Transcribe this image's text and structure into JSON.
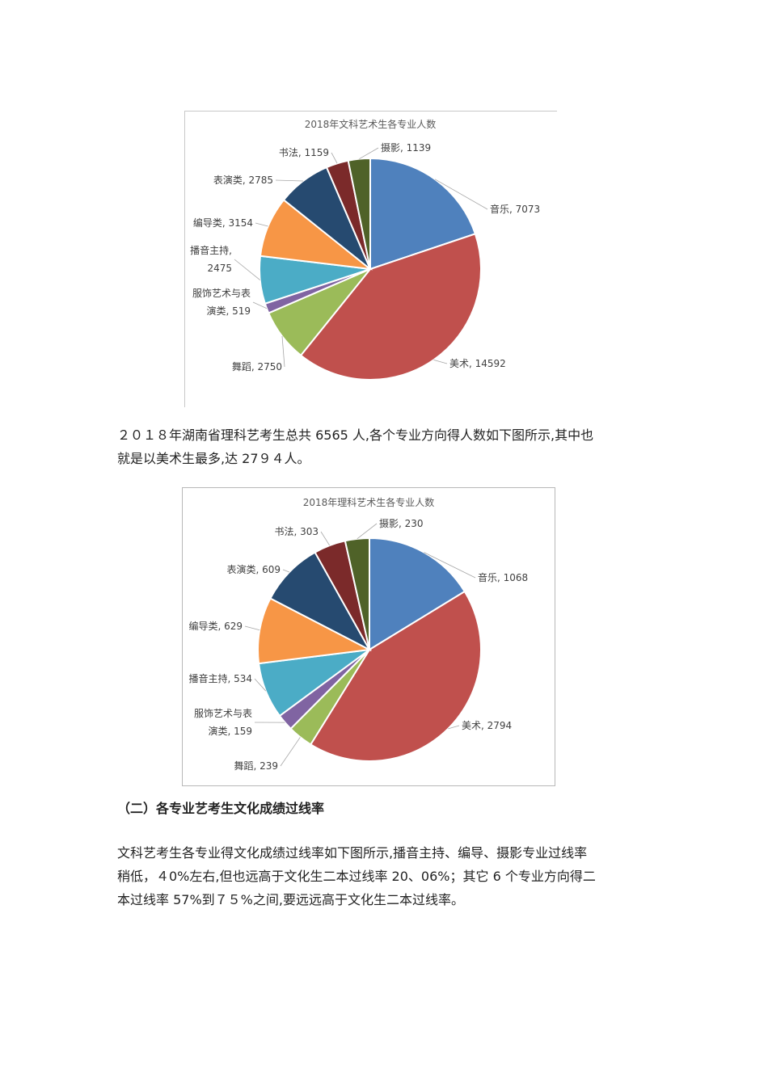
{
  "colors": {
    "音乐": "#4f81bd",
    "美术": "#c0504d",
    "舞蹈": "#9bbb59",
    "服饰": "#8064a2",
    "播音": "#4bacc6",
    "编导": "#f79646",
    "表演": "#264a70",
    "书法": "#7b2a2a",
    "摄影": "#4f6228"
  },
  "chart_data": [
    {
      "type": "pie",
      "title": "2018年文科艺术生各专业人数",
      "series": [
        {
          "values": [
            7073,
            14592,
            2750,
            519,
            2475,
            3154,
            2785,
            1159,
            1139
          ]
        }
      ],
      "categories": [
        "音乐",
        "美术",
        "舞蹈",
        "服饰艺术与表演类",
        "播音主持",
        "编导类",
        "表演类",
        "书法",
        "摄影"
      ],
      "labels": [
        [
          "音乐, 7073"
        ],
        [
          "美术, 14592"
        ],
        [
          "舞蹈, 2750"
        ],
        [
          "服饰艺术与表",
          "演类, 519"
        ],
        [
          "播音主持,",
          "2475"
        ],
        [
          "编导类, 3154"
        ],
        [
          "表演类, 2785"
        ],
        [
          "书法, 1159"
        ],
        [
          "摄影, 1139"
        ]
      ]
    },
    {
      "type": "pie",
      "title": "2018年理科艺术生各专业人数",
      "series": [
        {
          "values": [
            1068,
            2794,
            239,
            159,
            534,
            629,
            609,
            303,
            230
          ]
        }
      ],
      "categories": [
        "音乐",
        "美术",
        "舞蹈",
        "服饰艺术与表演类",
        "播音主持",
        "编导类",
        "表演类",
        "书法",
        "摄影"
      ],
      "labels": [
        [
          "音乐, 1068"
        ],
        [
          "美术, 2794"
        ],
        [
          "舞蹈, 239"
        ],
        [
          "服饰艺术与表",
          "演类, 159"
        ],
        [
          "播音主持, 534"
        ],
        [
          "编导类, 629"
        ],
        [
          "表演类, 609"
        ],
        [
          "书法, 303"
        ],
        [
          "摄影, 230"
        ]
      ]
    }
  ],
  "text": {
    "para1_line1": "２０１８年湖南省理科艺考生总共 6565 人,各个专业方向得人数如下图所示,其中也",
    "para1_line2": "就是以美术生最多,达 27９４人。",
    "heading": "（二）各专业艺考生文化成绩过线率",
    "para2_line1": "文科艺考生各专业得文化成绩过线率如下图所示,播音主持、编导、摄影专业过线率",
    "para2_line2": "稍低，４0%左右,但也远高于文化生二本过线率 20、06%；其它 6 个专业方向得二",
    "para2_line3": "本过线率 57%到７５%之间,要远远高于文化生二本过线率。"
  }
}
